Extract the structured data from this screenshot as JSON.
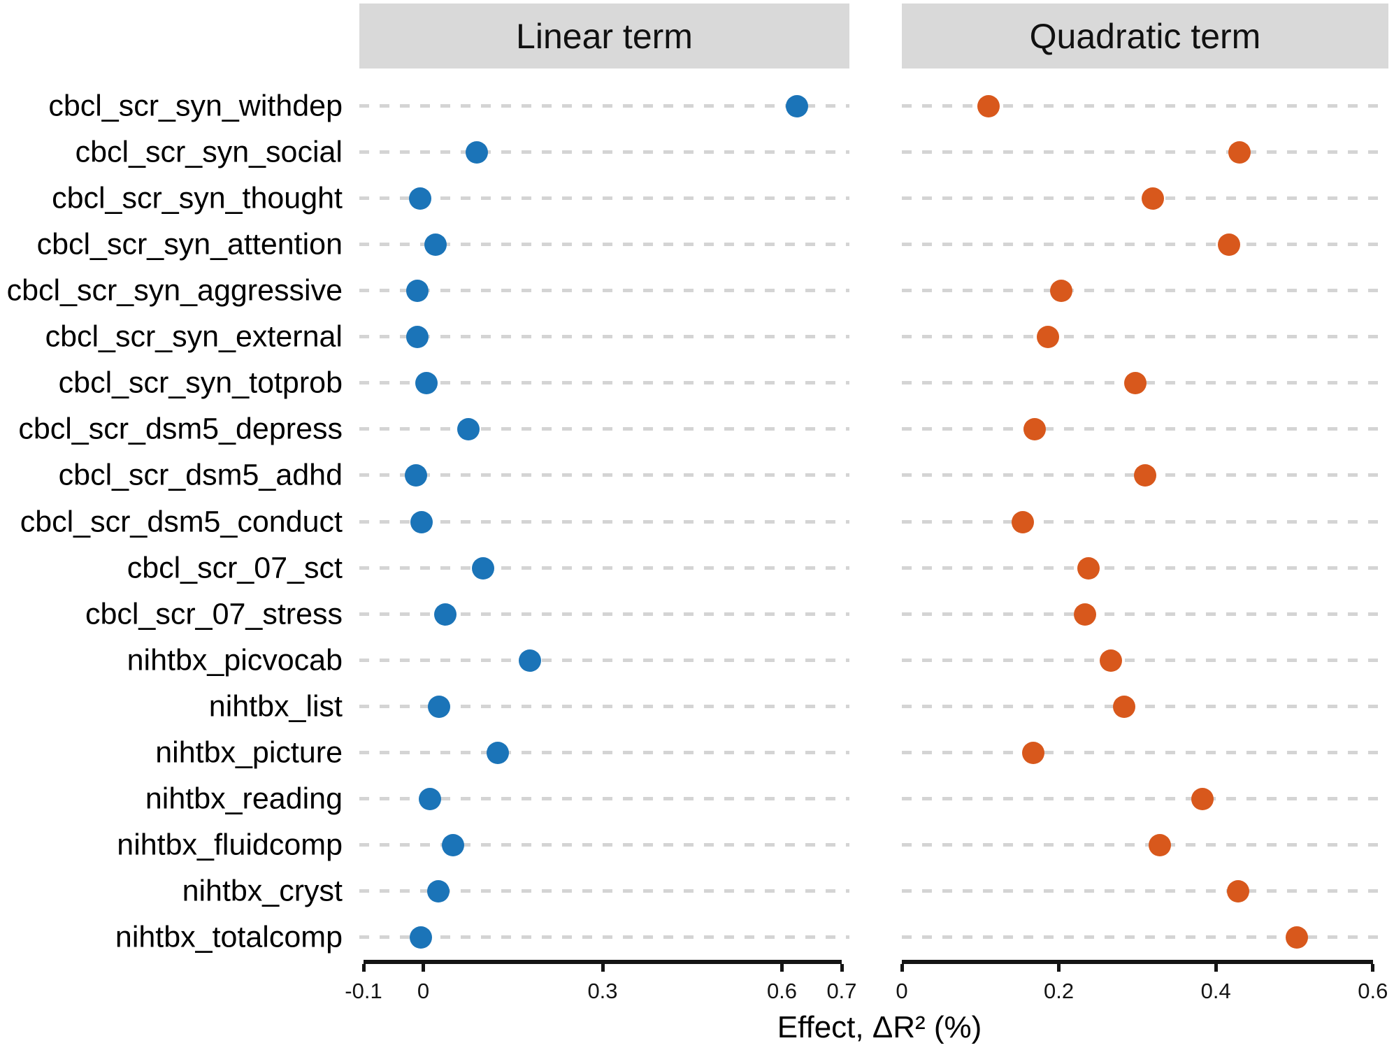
{
  "chart_data": {
    "type": "scatter",
    "subtype": "horizontal-faceted-dot-plot",
    "categories": [
      "cbcl_scr_syn_withdep",
      "cbcl_scr_syn_social",
      "cbcl_scr_syn_thought",
      "cbcl_scr_syn_attention",
      "cbcl_scr_syn_aggressive",
      "cbcl_scr_syn_external",
      "cbcl_scr_syn_totprob",
      "cbcl_scr_dsm5_depress",
      "cbcl_scr_dsm5_adhd",
      "cbcl_scr_dsm5_conduct",
      "cbcl_scr_07_sct",
      "cbcl_scr_07_stress",
      "nihtbx_picvocab",
      "nihtbx_list",
      "nihtbx_picture",
      "nihtbx_reading",
      "nihtbx_fluidcomp",
      "nihtbx_cryst",
      "nihtbx_totalcomp"
    ],
    "series": [
      {
        "name": "Linear term",
        "panel": 0,
        "color": "#1b74b8",
        "values": [
          0.625,
          0.09,
          -0.005,
          0.02,
          -0.01,
          -0.01,
          0.005,
          0.075,
          -0.012,
          -0.003,
          0.1,
          0.037,
          0.178,
          0.026,
          0.124,
          0.011,
          0.05,
          0.025,
          -0.004
        ]
      },
      {
        "name": "Quadratic term",
        "panel": 1,
        "color": "#d8581c",
        "values": [
          0.11,
          0.43,
          0.32,
          0.417,
          0.203,
          0.186,
          0.297,
          0.169,
          0.31,
          0.154,
          0.238,
          0.233,
          0.266,
          0.283,
          0.167,
          0.383,
          0.329,
          0.428,
          0.503
        ]
      }
    ],
    "panels": [
      {
        "title": "Linear term",
        "xlim": [
          -0.1,
          0.7
        ],
        "xticks": [
          -0.1,
          0,
          0.3,
          0.6,
          0.7
        ],
        "xtick_labels": [
          "-0.1",
          "0",
          "0.3",
          "0.6",
          "0.7"
        ]
      },
      {
        "title": "Quadratic term",
        "xlim": [
          0,
          0.6
        ],
        "xticks": [
          0,
          0.2,
          0.4,
          0.6
        ],
        "xtick_labels": [
          "0",
          "0.2",
          "0.4",
          "0.6"
        ]
      }
    ],
    "xlabel": "Effect, ΔR² (%)",
    "ylabel": "",
    "grid": {
      "direction": "horizontal",
      "style": "dashed",
      "color": "#d4d4d4"
    },
    "strip_bg": "#d9d9d9",
    "legend_position": "none",
    "background": "#ffffff"
  }
}
